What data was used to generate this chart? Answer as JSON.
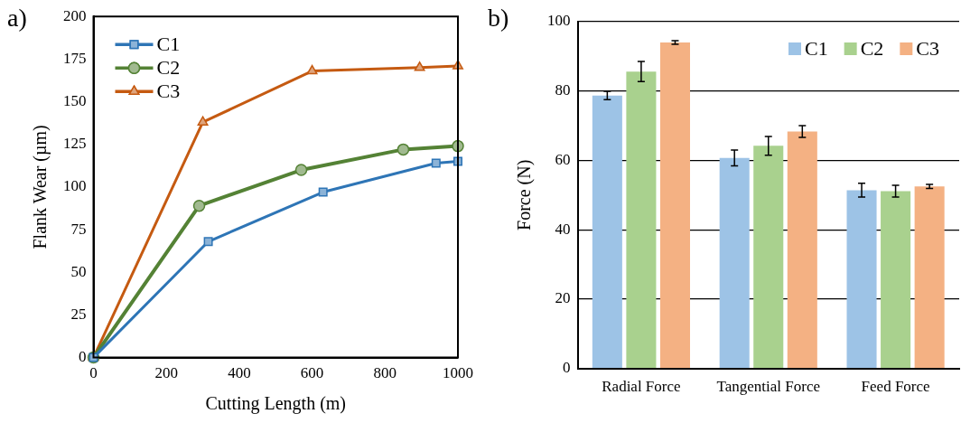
{
  "chart_data": [
    {
      "type": "line",
      "xlabel": "Cutting Length (m)",
      "ylabel": "Flank Wear (µm)",
      "annotations": [
        "a)"
      ],
      "xlim": [
        0,
        1000
      ],
      "xticks": [
        0,
        200,
        400,
        600,
        800,
        1000
      ],
      "ylim": [
        0,
        200
      ],
      "yticks": [
        0,
        25,
        50,
        75,
        100,
        125,
        150,
        175,
        200
      ],
      "grid": false,
      "legend": "top left",
      "line_style": "solid",
      "series": [
        {
          "name": "C1",
          "color": "#2e75b6",
          "marker": "square",
          "x": [
            0,
            315,
            630,
            940,
            1000
          ],
          "values": [
            0,
            68,
            97,
            114,
            115
          ]
        },
        {
          "name": "C2",
          "color": "#548235",
          "marker": "circle",
          "x": [
            0,
            290,
            570,
            850,
            1000
          ],
          "values": [
            0,
            89,
            110,
            122,
            124
          ]
        },
        {
          "name": "C3",
          "color": "#c55a11",
          "marker": "triangle",
          "x": [
            0,
            300,
            600,
            895,
            1000
          ],
          "values": [
            0,
            138,
            168,
            170,
            171
          ]
        }
      ]
    },
    {
      "type": "bar",
      "ylabel": "Force (N)",
      "annotations": [
        "b)"
      ],
      "categories": [
        "Radial Force",
        "Tangential Force",
        "Feed Force"
      ],
      "ylim": [
        0,
        100
      ],
      "yticks": [
        0,
        20,
        40,
        60,
        80,
        100
      ],
      "grid": "y",
      "legend": "top right",
      "series": [
        {
          "name": "C1",
          "color": "#9dc3e6",
          "values": [
            78.7,
            60.7,
            51.4
          ],
          "errors": [
            1.2,
            2.3,
            2
          ]
        },
        {
          "name": "C2",
          "color": "#a9d18e",
          "values": [
            85.6,
            64.2,
            51.1
          ],
          "errors": [
            2.9,
            2.7,
            1.7
          ]
        },
        {
          "name": "C3",
          "color": "#f4b183",
          "values": [
            94,
            68.3,
            52.5
          ],
          "errors": [
            0.5,
            1.7,
            0.6
          ]
        }
      ]
    }
  ]
}
